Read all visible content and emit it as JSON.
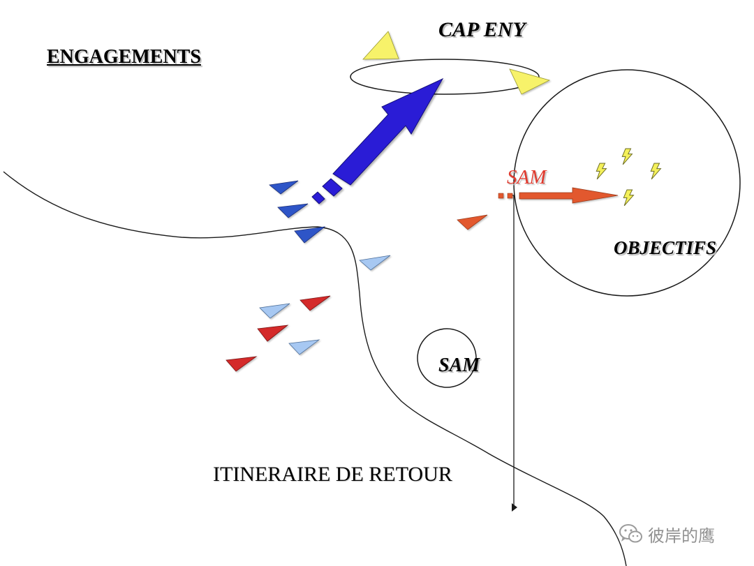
{
  "title": "ENGAGEMENTS",
  "labels": {
    "cap_eny": "CAP ENY",
    "sam_threat": "SAM",
    "objectifs": "OBJECTIFS",
    "sam_site": "SAM",
    "retour": "ITINERAIRE DE RETOUR"
  },
  "watermark": {
    "text": "彼岸的鹰",
    "icon": "wechat-icon"
  },
  "colors": {
    "friendly_dark": "#2f55c7",
    "friendly_light": "#a7c8f2",
    "hostile_red": "#d42a2a",
    "sam_orange": "#e2592e",
    "cap_yellow": "#f7f26b",
    "attack_arrow": "#2a1fd6",
    "bolt_yellow": "#f4f05a",
    "sam_label_red": "#e03a2e"
  }
}
